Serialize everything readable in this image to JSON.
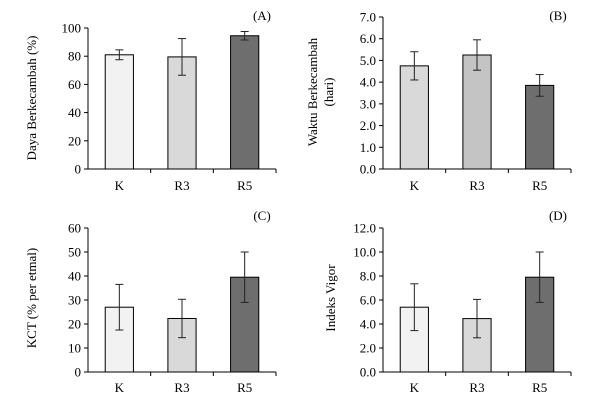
{
  "chart_data": [
    {
      "type": "bar",
      "panel": "(A)",
      "ylabel": "Daya Berkecambah (%)",
      "categories": [
        "K",
        "R3",
        "R5"
      ],
      "values": [
        81,
        79.5,
        94.5
      ],
      "errors": [
        3.5,
        13,
        3
      ],
      "ylim": [
        0,
        100
      ],
      "yticks": [
        "0",
        "20",
        "40",
        "60",
        "80",
        "100"
      ],
      "colors": [
        "#f2f2f2",
        "#d9d9d9",
        "#6e6e6e"
      ]
    },
    {
      "type": "bar",
      "panel": "(B)",
      "ylabel": "Waktu Berkecambah",
      "ylabel2": "(hari)",
      "categories": [
        "K",
        "R3",
        "R5"
      ],
      "values": [
        4.75,
        5.25,
        3.85
      ],
      "errors": [
        0.65,
        0.7,
        0.5
      ],
      "ylim": [
        0,
        7
      ],
      "yticks": [
        "0.0",
        "1.0",
        "2.0",
        "3.0",
        "4.0",
        "5.0",
        "6.0",
        "7.0"
      ],
      "colors": [
        "#d9d9d9",
        "#c4c4c4",
        "#6e6e6e"
      ]
    },
    {
      "type": "bar",
      "panel": "(C)",
      "ylabel": "KCT (% per etmal)",
      "categories": [
        "K",
        "R3",
        "R5"
      ],
      "values": [
        27,
        22.3,
        39.5
      ],
      "errors": [
        9.5,
        8,
        10.5
      ],
      "ylim": [
        0,
        60
      ],
      "yticks": [
        "0",
        "10",
        "20",
        "30",
        "40",
        "50",
        "60"
      ],
      "colors": [
        "#f2f2f2",
        "#d9d9d9",
        "#6e6e6e"
      ]
    },
    {
      "type": "bar",
      "panel": "(D)",
      "ylabel": "Indeks Vigor",
      "categories": [
        "K",
        "R3",
        "R5"
      ],
      "values": [
        5.4,
        4.45,
        7.9
      ],
      "errors": [
        1.95,
        1.6,
        2.1
      ],
      "ylim": [
        0,
        12
      ],
      "yticks": [
        "0.0",
        "2.0",
        "4.0",
        "6.0",
        "8.0",
        "10.0",
        "12.0"
      ],
      "colors": [
        "#f2f2f2",
        "#d9d9d9",
        "#6e6e6e"
      ]
    }
  ]
}
